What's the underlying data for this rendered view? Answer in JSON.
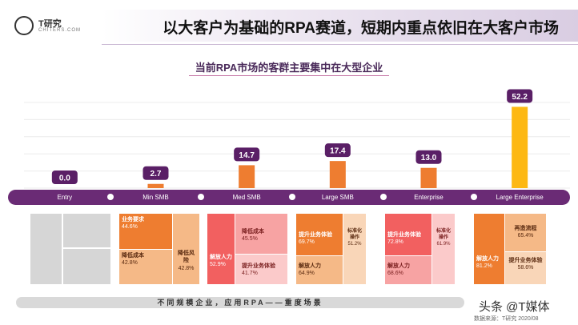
{
  "header": {
    "logo_name": "T研究",
    "logo_sub": "CHITERS.COM",
    "title": "以大客户为基础的RPA赛道，短期内重点依旧在大客户市场"
  },
  "subtitle": "当前RPA市场的客群主要集中在大型企业",
  "colors": {
    "bar_small": "#ee7d30",
    "bar_large": "#fdb813",
    "category_band": "#6a2b75",
    "label_box": "#5a1f66"
  },
  "chart_data": {
    "type": "bar",
    "categories": [
      "Entry",
      "Min SMB",
      "Med SMB",
      "Large SMB",
      "Enterprise",
      "Large Enterprise"
    ],
    "values": [
      0.0,
      2.7,
      14.7,
      17.4,
      13.0,
      52.2
    ],
    "value_labels": [
      "0.0",
      "2.7",
      "14.7",
      "17.4",
      "13.0",
      "52.2"
    ],
    "title": "当前RPA市场的客群主要集中在大型企业",
    "ylim": [
      0,
      55
    ],
    "grid": true,
    "legend": "none"
  },
  "panels": [
    {
      "cells": []
    },
    {
      "cells": [
        {
          "label": "业务要求",
          "value": "44.6%"
        },
        {
          "label": "降低成本",
          "value": "42.8%"
        },
        {
          "label": "降低风险",
          "value": "42.8%"
        }
      ]
    },
    {
      "cells": [
        {
          "label": "解放人力",
          "value": "52.9%"
        },
        {
          "label": "降低成本",
          "value": "45.5%"
        },
        {
          "label": "提升业务体验",
          "value": "41.7%"
        }
      ]
    },
    {
      "cells": [
        {
          "label": "提升业务体验",
          "value": "69.7%"
        },
        {
          "label": "解放人力",
          "value": "64.9%"
        },
        {
          "label": "标准化操作",
          "value": "51.2%"
        }
      ]
    },
    {
      "cells": [
        {
          "label": "提升业务体验",
          "value": "72.8%"
        },
        {
          "label": "解放人力",
          "value": "68.6%"
        },
        {
          "label": "标准化操作",
          "value": "61.9%"
        }
      ]
    },
    {
      "cells": [
        {
          "label": "解放人力",
          "value": "81.2%"
        },
        {
          "label": "再造流程",
          "value": "65.4%"
        },
        {
          "label": "提升业务体验",
          "value": "58.6%"
        }
      ]
    }
  ],
  "footer": {
    "caption": "不同规模企业，应用RPA——重度场景",
    "source": "数据来源：T研究 2020/08",
    "watermark": "头条 @T媒体"
  }
}
